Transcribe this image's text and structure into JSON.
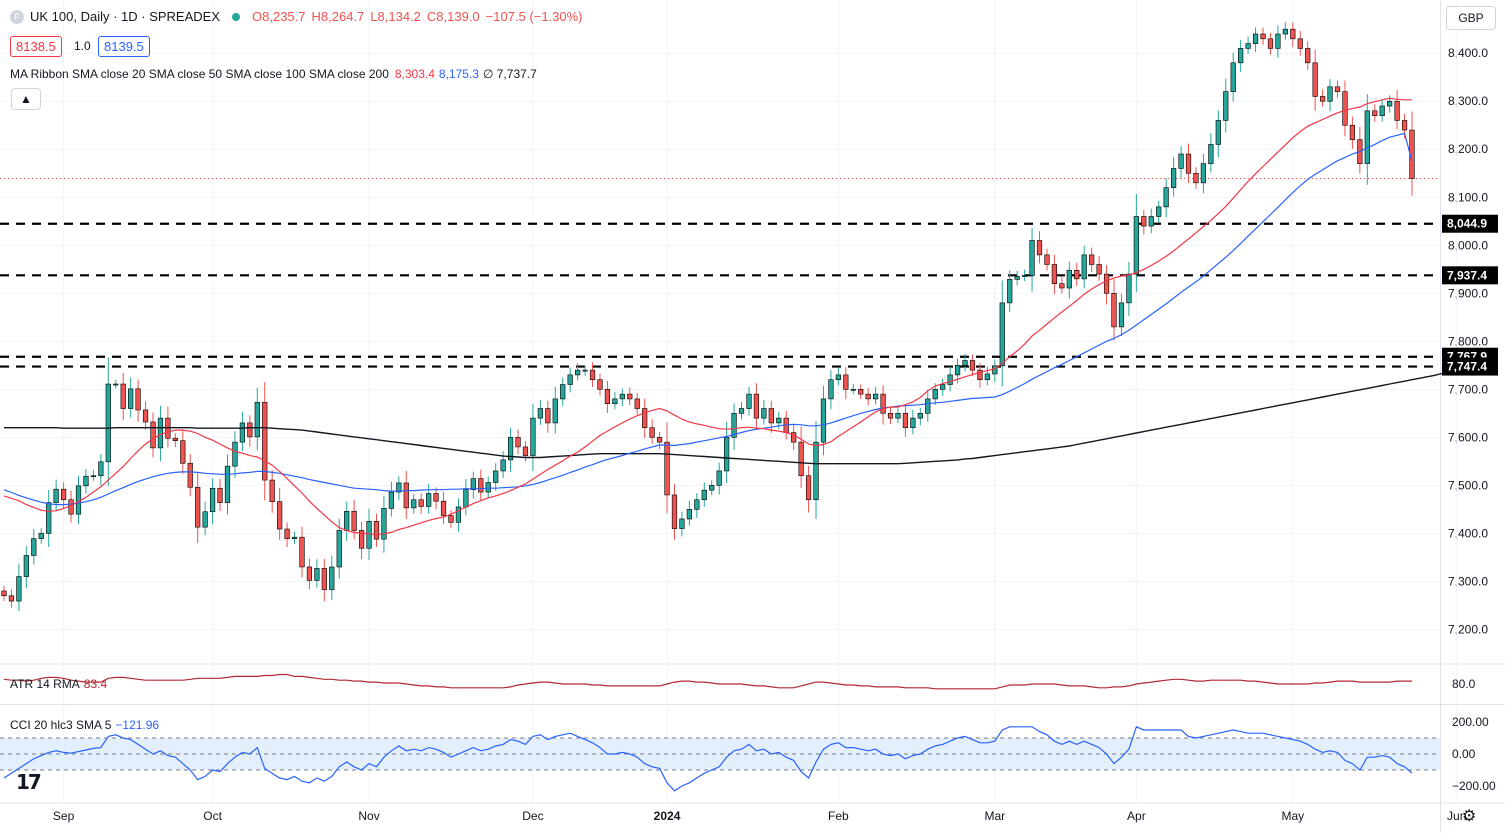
{
  "header": {
    "symbol_icon": "F",
    "title": "UK 100, Daily · 1D · SPREADEX",
    "open": "O8,235.7",
    "high": "H8,264.7",
    "low": "L8,134.2",
    "close": "C8,139.0",
    "change": "−107.5 (−1.30%)",
    "bid": "8138.5",
    "spread": "1.0",
    "ask": "8139.5",
    "ribbon_label": "MA Ribbon SMA close 20 SMA close 50 SMA close 100 SMA close 200",
    "ribbon_v1": "8,303.4",
    "ribbon_v2": "8,175.3",
    "ribbon_v3": "∅ 7,737.7",
    "collapse_icon": "chevron-up-icon",
    "currency": "GBP"
  },
  "atr_panel": {
    "label": "ATR 14 RMA",
    "value": "83.4",
    "ticks": [
      {
        "v": 80,
        "label": "80.0"
      }
    ]
  },
  "cci_panel": {
    "label": "CCI 20 hlc3 SMA 5",
    "value": "−121.96",
    "ticks": [
      {
        "v": 200,
        "label": "200.00"
      },
      {
        "v": 0,
        "label": "0.00"
      },
      {
        "v": -200,
        "label": "−200.00"
      }
    ]
  },
  "colors": {
    "up": "#26a69a",
    "down": "#ef5350",
    "ma20": "#f23645",
    "ma50": "#2962ff",
    "ma200": "#131722",
    "atr": "#b22833",
    "cci": "#2962ff",
    "band": "#e3effd"
  },
  "chart_data": {
    "type": "candlestick",
    "title": "UK 100, Daily · 1D · SPREADEX",
    "y_ticks": [
      7200,
      7300,
      7400,
      7500,
      7600,
      7700,
      7800,
      7900,
      8000,
      8100,
      8200,
      8300,
      8400
    ],
    "y_tick_labels": [
      "7,200.0",
      "7,300.0",
      "7,400.0",
      "7,500.0",
      "7,600.0",
      "7,700.0",
      "7,800.0",
      "7,900.0",
      "8,000.0",
      "8,100.0",
      "8,200.0",
      "8,300.0",
      "8,400.0"
    ],
    "ylim": [
      7130,
      8490
    ],
    "x_labels": [
      {
        "label": "Sep",
        "index": 8
      },
      {
        "label": "Oct",
        "index": 28
      },
      {
        "label": "Nov",
        "index": 49
      },
      {
        "label": "Dec",
        "index": 71
      },
      {
        "label": "2024",
        "index": 89
      },
      {
        "label": "Feb",
        "index": 112
      },
      {
        "label": "Mar",
        "index": 133
      },
      {
        "label": "Apr",
        "index": 152
      },
      {
        "label": "May",
        "index": 173
      },
      {
        "label": "Jun",
        "index": 195
      }
    ],
    "horizontal_levels": [
      {
        "value": 8044.9,
        "label": "8,044.9"
      },
      {
        "value": 7937.4,
        "label": "7,937.4"
      },
      {
        "value": 7767.9,
        "label": "7,767.9"
      },
      {
        "value": 7747.4,
        "label": "7,747.4"
      }
    ],
    "last_close": 8139.0,
    "close": [
      7270,
      7259,
      7310,
      7354,
      7389,
      7400,
      7464,
      7492,
      7470,
      7440,
      7499,
      7519,
      7520,
      7549,
      7711,
      7711,
      7660,
      7701,
      7657,
      7632,
      7578,
      7640,
      7598,
      7593,
      7546,
      7496,
      7413,
      7445,
      7494,
      7464,
      7540,
      7590,
      7630,
      7601,
      7673,
      7511,
      7466,
      7409,
      7389,
      7392,
      7330,
      7302,
      7327,
      7283,
      7330,
      7406,
      7446,
      7406,
      7369,
      7425,
      7388,
      7452,
      7486,
      7505,
      7453,
      7470,
      7456,
      7483,
      7467,
      7437,
      7423,
      7455,
      7491,
      7514,
      7486,
      7506,
      7530,
      7553,
      7600,
      7580,
      7562,
      7640,
      7660,
      7630,
      7680,
      7710,
      7730,
      7740,
      7740,
      7720,
      7700,
      7670,
      7680,
      7690,
      7680,
      7660,
      7620,
      7600,
      7590,
      7480,
      7410,
      7430,
      7450,
      7470,
      7490,
      7500,
      7530,
      7600,
      7650,
      7660,
      7690,
      7640,
      7660,
      7630,
      7640,
      7610,
      7590,
      7520,
      7470,
      7590,
      7680,
      7720,
      7730,
      7700,
      7700,
      7690,
      7680,
      7690,
      7650,
      7640,
      7650,
      7620,
      7640,
      7650,
      7680,
      7700,
      7710,
      7730,
      7750,
      7760,
      7740,
      7720,
      7732,
      7749,
      7880,
      7929,
      7935,
      7937,
      8010,
      7980,
      7960,
      7920,
      7911,
      7948,
      7930,
      7980,
      7960,
      7940,
      7900,
      7830,
      7880,
      7940,
      8060,
      8040,
      8060,
      8080,
      8120,
      8160,
      8190,
      8150,
      8130,
      8170,
      8210,
      8260,
      8320,
      8380,
      8410,
      8420,
      8440,
      8430,
      8410,
      8440,
      8450,
      8430,
      8410,
      8380,
      8310,
      8300,
      8330,
      8320,
      8250,
      8220,
      8170,
      8280,
      8270,
      8290,
      8300,
      8260,
      8240,
      8139
    ],
    "ma20": [
      7478,
      7473,
      7468,
      7460,
      7454,
      7448,
      7446,
      7447,
      7452,
      7458,
      7466,
      7475,
      7486,
      7497,
      7511,
      7525,
      7539,
      7556,
      7572,
      7586,
      7597,
      7606,
      7611,
      7615,
      7615,
      7613,
      7608,
      7600,
      7594,
      7586,
      7578,
      7571,
      7567,
      7562,
      7559,
      7551,
      7542,
      7529,
      7514,
      7499,
      7484,
      7467,
      7452,
      7438,
      7424,
      7412,
      7406,
      7402,
      7400,
      7399,
      7397,
      7399,
      7402,
      7408,
      7412,
      7417,
      7422,
      7427,
      7431,
      7434,
      7440,
      7447,
      7455,
      7462,
      7468,
      7474,
      7478,
      7483,
      7489,
      7496,
      7503,
      7513,
      7523,
      7533,
      7542,
      7551,
      7561,
      7569,
      7580,
      7592,
      7604,
      7613,
      7622,
      7630,
      7638,
      7645,
      7651,
      7656,
      7660,
      7655,
      7646,
      7638,
      7632,
      7628,
      7625,
      7621,
      7618,
      7617,
      7618,
      7620,
      7621,
      7619,
      7618,
      7615,
      7613,
      7610,
      7605,
      7596,
      7586,
      7583,
      7585,
      7591,
      7602,
      7612,
      7622,
      7632,
      7643,
      7653,
      7660,
      7663,
      7663,
      7668,
      7674,
      7683,
      7697,
      7707,
      7712,
      7716,
      7721,
      7726,
      7731,
      7735,
      7739,
      7743,
      7754,
      7768,
      7780,
      7794,
      7811,
      7823,
      7836,
      7849,
      7861,
      7873,
      7885,
      7898,
      7909,
      7918,
      7926,
      7932,
      7936,
      7938,
      7943,
      7950,
      7958,
      7967,
      7977,
      7988,
      8001,
      8013,
      8026,
      8039,
      8052,
      8066,
      8081,
      8098,
      8116,
      8133,
      8149,
      8164,
      8179,
      8194,
      8209,
      8224,
      8237,
      8248,
      8255,
      8262,
      8269,
      8276,
      8281,
      8285,
      8288,
      8295,
      8299,
      8303,
      8306,
      8304,
      8303,
      8303
    ],
    "ma50": [
      7491,
      7485,
      7479,
      7474,
      7469,
      7465,
      7462,
      7460,
      7460,
      7461,
      7463,
      7466,
      7470,
      7475,
      7482,
      7489,
      7495,
      7502,
      7508,
      7513,
      7518,
      7522,
      7525,
      7527,
      7528,
      7528,
      7527,
      7525,
      7524,
      7523,
      7523,
      7524,
      7526,
      7527,
      7529,
      7529,
      7527,
      7525,
      7522,
      7519,
      7516,
      7512,
      7509,
      7506,
      7503,
      7500,
      7497,
      7494,
      7493,
      7492,
      7491,
      7489,
      7488,
      7488,
      7489,
      7489,
      7490,
      7491,
      7491,
      7491,
      7492,
      7492,
      7493,
      7493,
      7493,
      7494,
      7494,
      7495,
      7496,
      7497,
      7499,
      7502,
      7506,
      7511,
      7516,
      7521,
      7527,
      7532,
      7538,
      7543,
      7549,
      7554,
      7558,
      7562,
      7567,
      7571,
      7576,
      7580,
      7584,
      7584,
      7583,
      7585,
      7587,
      7590,
      7593,
      7596,
      7599,
      7602,
      7606,
      7610,
      7614,
      7617,
      7619,
      7621,
      7624,
      7626,
      7627,
      7626,
      7624,
      7624,
      7626,
      7630,
      7635,
      7640,
      7645,
      7650,
      7654,
      7658,
      7661,
      7663,
      7665,
      7666,
      7667,
      7668,
      7670,
      7672,
      7673,
      7675,
      7677,
      7679,
      7681,
      7682,
      7683,
      7684,
      7689,
      7696,
      7704,
      7712,
      7721,
      7729,
      7737,
      7745,
      7752,
      7760,
      7768,
      7776,
      7784,
      7792,
      7800,
      7806,
      7814,
      7823,
      7834,
      7845,
      7856,
      7867,
      7878,
      7890,
      7902,
      7913,
      7924,
      7936,
      7949,
      7962,
      7975,
      7989,
      8004,
      8019,
      8034,
      8049,
      8064,
      8079,
      8095,
      8110,
      8124,
      8137,
      8148,
      8157,
      8167,
      8176,
      8183,
      8190,
      8195,
      8203,
      8210,
      8218,
      8225,
      8229,
      8233,
      8175
    ],
    "ma200": [
      7620,
      7620,
      7620,
      7620,
      7620,
      7620,
      7620,
      7620,
      7619,
      7619,
      7619,
      7619,
      7619,
      7619,
      7619,
      7620,
      7620,
      7620,
      7620,
      7620,
      7620,
      7620,
      7620,
      7620,
      7620,
      7620,
      7619,
      7619,
      7619,
      7619,
      7619,
      7619,
      7619,
      7620,
      7620,
      7620,
      7619,
      7618,
      7617,
      7616,
      7615,
      7613,
      7611,
      7609,
      7607,
      7605,
      7603,
      7601,
      7599,
      7597,
      7595,
      7593,
      7591,
      7589,
      7587,
      7585,
      7583,
      7581,
      7579,
      7577,
      7575,
      7573,
      7571,
      7569,
      7567,
      7565,
      7563,
      7561,
      7560,
      7559,
      7558,
      7558,
      7558,
      7559,
      7560,
      7561,
      7562,
      7563,
      7564,
      7565,
      7566,
      7566,
      7566,
      7566,
      7566,
      7566,
      7566,
      7566,
      7566,
      7565,
      7564,
      7563,
      7562,
      7561,
      7560,
      7559,
      7558,
      7557,
      7556,
      7555,
      7554,
      7553,
      7552,
      7551,
      7550,
      7549,
      7548,
      7547,
      7546,
      7545,
      7545,
      7545,
      7545,
      7545,
      7545,
      7545,
      7545,
      7545,
      7545,
      7545,
      7545,
      7546,
      7547,
      7548,
      7549,
      7550,
      7551,
      7552,
      7553,
      7555,
      7556,
      7558,
      7560,
      7562,
      7564,
      7566,
      7568,
      7570,
      7572,
      7574,
      7576,
      7578,
      7580,
      7582,
      7585,
      7588,
      7591,
      7594,
      7597,
      7600,
      7603,
      7606,
      7609,
      7612,
      7615,
      7618,
      7621,
      7624,
      7627,
      7630,
      7633,
      7636,
      7639,
      7642,
      7645,
      7648,
      7651,
      7654,
      7657,
      7660,
      7663,
      7666,
      7669,
      7672,
      7675,
      7678,
      7681,
      7684,
      7687,
      7690,
      7693,
      7696,
      7699,
      7702,
      7705,
      7708,
      7711,
      7714,
      7717,
      7720,
      7723,
      7726,
      7729,
      7733,
      7736,
      7738
    ],
    "atr": [
      85,
      84,
      84,
      83,
      84,
      86,
      87,
      87,
      86,
      84,
      83,
      82,
      82,
      82,
      86,
      87,
      87,
      86,
      85,
      84,
      84,
      84,
      84,
      84,
      84,
      85,
      86,
      86,
      86,
      86,
      87,
      88,
      88,
      88,
      88,
      89,
      89,
      90,
      90,
      88,
      88,
      87,
      86,
      85,
      85,
      84,
      84,
      83,
      83,
      82,
      82,
      81,
      81,
      81,
      80,
      79,
      78,
      78,
      77,
      77,
      76,
      76,
      76,
      76,
      76,
      76,
      76,
      76,
      77,
      79,
      80,
      81,
      82,
      82,
      81,
      80,
      80,
      80,
      80,
      79,
      79,
      78,
      78,
      78,
      78,
      78,
      78,
      78,
      78,
      80,
      82,
      83,
      83,
      82,
      82,
      81,
      80,
      80,
      80,
      80,
      79,
      78,
      78,
      77,
      76,
      76,
      76,
      78,
      80,
      82,
      82,
      81,
      80,
      79,
      79,
      78,
      78,
      77,
      77,
      77,
      77,
      76,
      76,
      76,
      76,
      75,
      75,
      75,
      75,
      75,
      75,
      75,
      75,
      75,
      77,
      79,
      79,
      79,
      80,
      80,
      80,
      80,
      79,
      78,
      78,
      78,
      77,
      76,
      76,
      77,
      77,
      78,
      80,
      81,
      82,
      83,
      84,
      85,
      85,
      84,
      83,
      83,
      84,
      84,
      84,
      84,
      84,
      83,
      83,
      82,
      81,
      80,
      80,
      80,
      80,
      80,
      81,
      81,
      82,
      83,
      83,
      83,
      82,
      82,
      82,
      82,
      82,
      83,
      83,
      83
    ],
    "cci": [
      -150,
      -120,
      -90,
      -60,
      -30,
      -10,
      10,
      20,
      10,
      5,
      15,
      25,
      35,
      40,
      110,
      120,
      100,
      90,
      60,
      30,
      0,
      20,
      -10,
      -20,
      -60,
      -100,
      -160,
      -140,
      -100,
      -110,
      -60,
      -20,
      10,
      0,
      40,
      -90,
      -120,
      -150,
      -160,
      -140,
      -170,
      -180,
      -150,
      -170,
      -140,
      -80,
      -50,
      -80,
      -100,
      -60,
      -80,
      -20,
      20,
      50,
      20,
      30,
      20,
      40,
      30,
      10,
      -20,
      0,
      20,
      40,
      20,
      30,
      50,
      60,
      90,
      80,
      60,
      110,
      120,
      90,
      110,
      120,
      130,
      110,
      90,
      70,
      40,
      0,
      0,
      10,
      0,
      -20,
      -60,
      -80,
      -90,
      -180,
      -230,
      -200,
      -180,
      -150,
      -120,
      -100,
      -80,
      -20,
      20,
      30,
      60,
      20,
      30,
      0,
      10,
      -20,
      -40,
      -110,
      -150,
      -50,
      30,
      60,
      70,
      40,
      40,
      30,
      20,
      30,
      0,
      -10,
      0,
      -30,
      -10,
      0,
      30,
      50,
      60,
      80,
      100,
      110,
      90,
      70,
      70,
      80,
      150,
      170,
      170,
      170,
      170,
      140,
      120,
      80,
      60,
      80,
      60,
      80,
      60,
      40,
      0,
      -60,
      -20,
      30,
      170,
      150,
      150,
      150,
      150,
      150,
      150,
      110,
      100,
      110,
      120,
      130,
      140,
      150,
      140,
      130,
      130,
      130,
      120,
      110,
      100,
      90,
      80,
      60,
      30,
      10,
      20,
      10,
      -40,
      -60,
      -100,
      -20,
      -20,
      -10,
      -20,
      -60,
      -80,
      -120
    ],
    "atr_range": [
      60,
      100
    ],
    "cci_range": [
      -300,
      300
    ]
  }
}
